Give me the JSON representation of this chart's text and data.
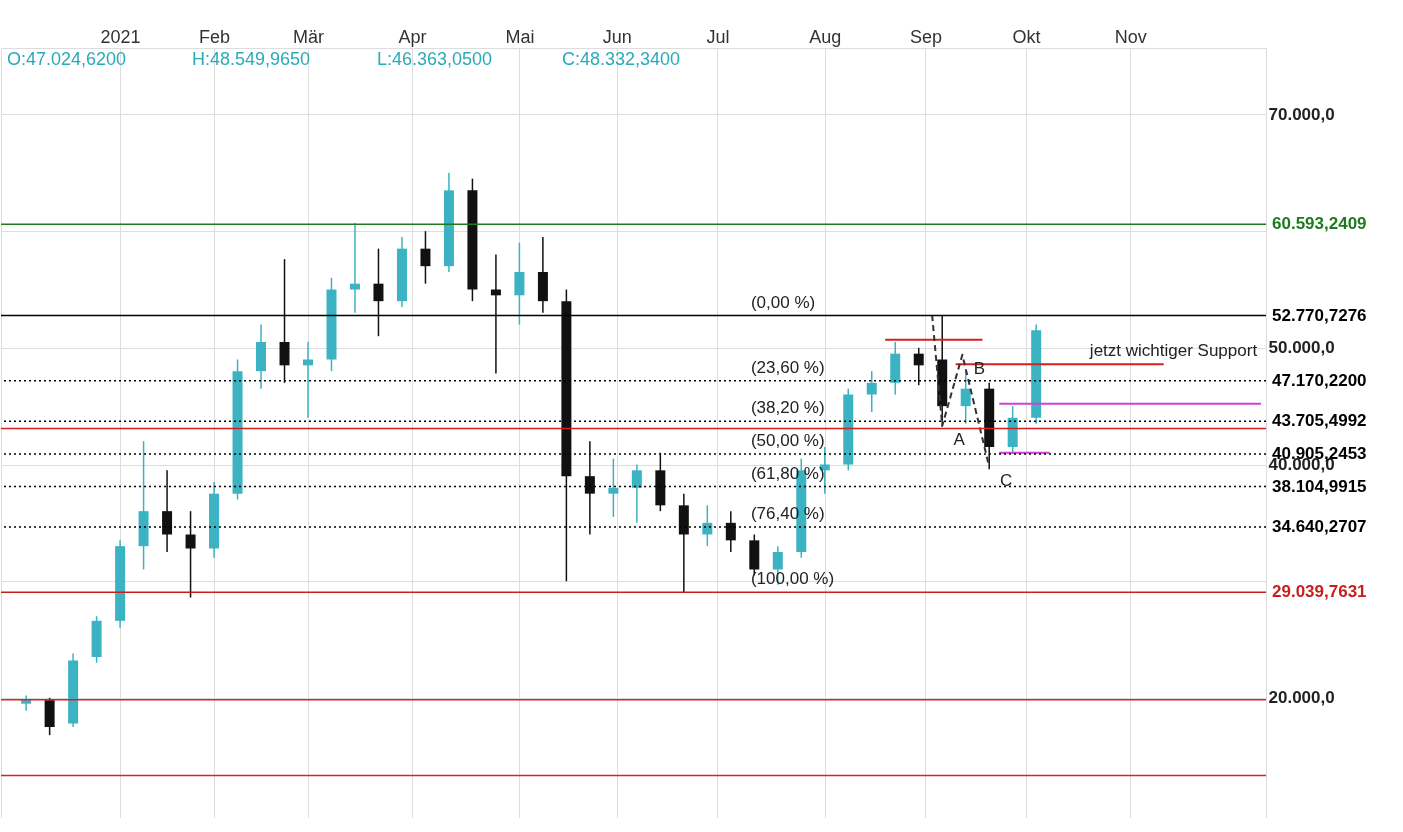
{
  "chart_data": {
    "type": "candlestick",
    "x": [
      "2020-12-07",
      "2020-12-14",
      "2020-12-21",
      "2020-12-28",
      "2021-01-04",
      "2021-01-11",
      "2021-01-18",
      "2021-01-25",
      "2021-02-01",
      "2021-02-08",
      "2021-02-15",
      "2021-02-22",
      "2021-03-01",
      "2021-03-08",
      "2021-03-15",
      "2021-03-22",
      "2021-03-29",
      "2021-04-05",
      "2021-04-12",
      "2021-04-19",
      "2021-04-26",
      "2021-05-03",
      "2021-05-10",
      "2021-05-17",
      "2021-05-24",
      "2021-05-31",
      "2021-06-07",
      "2021-06-14",
      "2021-06-21",
      "2021-06-28",
      "2021-07-05",
      "2021-07-12",
      "2021-07-19",
      "2021-07-26",
      "2021-08-02",
      "2021-08-09",
      "2021-08-16",
      "2021-08-23",
      "2021-08-30",
      "2021-09-06",
      "2021-09-13",
      "2021-09-20",
      "2021-09-27",
      "2021-10-04"
    ],
    "ohlc": [
      [
        19500,
        20200,
        18900,
        19800
      ],
      [
        19800,
        20000,
        16800,
        17500
      ],
      [
        17800,
        23800,
        17500,
        23200
      ],
      [
        23500,
        27000,
        23000,
        26600
      ],
      [
        26600,
        33500,
        26000,
        33000
      ],
      [
        33000,
        42000,
        31000,
        36000
      ],
      [
        36000,
        39500,
        32500,
        34000
      ],
      [
        34000,
        36000,
        28600,
        32800
      ],
      [
        32800,
        38500,
        32000,
        37500
      ],
      [
        37500,
        49000,
        37000,
        48000
      ],
      [
        48000,
        52000,
        46500,
        50500
      ],
      [
        50500,
        57600,
        47000,
        48500
      ],
      [
        48500,
        50500,
        44000,
        49000
      ],
      [
        49000,
        56000,
        48000,
        55000
      ],
      [
        55000,
        60700,
        53000,
        55500
      ],
      [
        55500,
        58500,
        51000,
        54000
      ],
      [
        54000,
        59500,
        53500,
        58500
      ],
      [
        58500,
        60000,
        55500,
        57000
      ],
      [
        57000,
        65000,
        56500,
        63500
      ],
      [
        63500,
        64500,
        54000,
        55000
      ],
      [
        55000,
        58000,
        47800,
        54500
      ],
      [
        54500,
        59000,
        52000,
        56500
      ],
      [
        56500,
        59500,
        53000,
        54000
      ],
      [
        54000,
        55000,
        30000,
        39000
      ],
      [
        39000,
        42000,
        34000,
        37500
      ],
      [
        37500,
        40500,
        35500,
        38000
      ],
      [
        38000,
        40000,
        35000,
        39500
      ],
      [
        39500,
        41000,
        36000,
        36500
      ],
      [
        36500,
        37500,
        29000,
        34000
      ],
      [
        34000,
        36500,
        33000,
        35000
      ],
      [
        35000,
        36000,
        32500,
        33500
      ],
      [
        33500,
        34000,
        30500,
        31000
      ],
      [
        31000,
        33000,
        29700,
        32500
      ],
      [
        32500,
        40500,
        32000,
        39500
      ],
      [
        39500,
        41500,
        37500,
        40000
      ],
      [
        40000,
        46500,
        39500,
        46000
      ],
      [
        46000,
        48000,
        44500,
        47000
      ],
      [
        47000,
        50500,
        46000,
        49500
      ],
      [
        49500,
        50000,
        46800,
        48500
      ],
      [
        49000,
        52770,
        43300,
        45000
      ],
      [
        45000,
        48000,
        43500,
        46500
      ],
      [
        46500,
        47000,
        39600,
        41500
      ],
      [
        41500,
        45000,
        40900,
        44000
      ],
      [
        44000,
        52000,
        43500,
        51500
      ]
    ],
    "colors": [
      "#3bb3c3",
      "#111111",
      "#3bb3c3",
      "#3bb3c3",
      "#3bb3c3",
      "#3bb3c3",
      "#111111",
      "#111111",
      "#3bb3c3",
      "#3bb3c3",
      "#3bb3c3",
      "#111111",
      "#3bb3c3",
      "#3bb3c3",
      "#3bb3c3",
      "#111111",
      "#3bb3c3",
      "#111111",
      "#3bb3c3",
      "#111111",
      "#111111",
      "#3bb3c3",
      "#111111",
      "#111111",
      "#111111",
      "#3bb3c3",
      "#3bb3c3",
      "#111111",
      "#111111",
      "#3bb3c3",
      "#111111",
      "#111111",
      "#3bb3c3",
      "#3bb3c3",
      "#3bb3c3",
      "#3bb3c3",
      "#3bb3c3",
      "#3bb3c3",
      "#111111",
      "#111111",
      "#3bb3c3",
      "#111111",
      "#3bb3c3",
      "#3bb3c3"
    ],
    "series": [
      {
        "type": "line",
        "color": "#d42020",
        "x": [
          "2021-08-20",
          "2021-09-18"
        ],
        "values": [
          50700,
          50700
        ]
      },
      {
        "type": "line",
        "color": "#d42020",
        "x": [
          "2021-09-10",
          "2021-11-11"
        ],
        "values": [
          48600,
          48600
        ]
      },
      {
        "type": "line",
        "color": "#d040d0",
        "x": [
          "2021-09-23",
          "2021-10-08"
        ],
        "values": [
          41000,
          41000
        ]
      },
      {
        "type": "line",
        "color": "#d040d0",
        "x": [
          "2021-09-23",
          "2021-12-10"
        ],
        "values": [
          45200,
          45200
        ]
      },
      {
        "type": "line",
        "color": "#333333",
        "line_style": "dashed",
        "x": [
          "2021-09-03",
          "2021-09-06",
          "2021-09-12",
          "2021-09-20"
        ],
        "values": [
          52800,
          43300,
          49400,
          39800
        ]
      }
    ],
    "xlim": [
      "2020-12-01",
      "2021-12-10"
    ],
    "xticks": [
      {
        "value": "2021-01-04",
        "label": "2021"
      },
      {
        "value": "2021-02-01",
        "label": "Feb"
      },
      {
        "value": "2021-03-01",
        "label": "Mär"
      },
      {
        "value": "2021-04-01",
        "label": "Apr"
      },
      {
        "value": "2021-05-03",
        "label": "Mai"
      },
      {
        "value": "2021-06-01",
        "label": "Jun"
      },
      {
        "value": "2021-07-01",
        "label": "Jul"
      },
      {
        "value": "2021-08-02",
        "label": "Aug"
      },
      {
        "value": "2021-09-01",
        "label": "Sep"
      },
      {
        "value": "2021-10-01",
        "label": "Okt"
      },
      {
        "value": "2021-11-01",
        "label": "Nov"
      }
    ],
    "ylim": [
      9700,
      75700
    ],
    "yticks": [
      {
        "value": 20000,
        "label": "20.000,0"
      },
      {
        "value": 30000,
        "label": null
      },
      {
        "value": 40000,
        "label": "40.000,0"
      },
      {
        "value": 50000,
        "label": "50.000,0"
      },
      {
        "value": 60000,
        "label": null
      },
      {
        "value": 70000,
        "label": "70.000,0"
      }
    ],
    "grid": true,
    "ref_lines": [
      {
        "axis": "y",
        "value": 60593.2409,
        "label": "60.593,2409",
        "color": "#1f7a1f"
      },
      {
        "axis": "y",
        "value": 52770.7276,
        "label": "52.770,7276",
        "color": "#000000"
      },
      {
        "axis": "y",
        "value": 47170.22,
        "label": "47.170,2200",
        "color": "#000000",
        "line_style": "dotted"
      },
      {
        "axis": "y",
        "value": 43705.4992,
        "label": "43.705,4992",
        "color": "#000000",
        "line_style": "dotted"
      },
      {
        "axis": "y",
        "value": 43090,
        "label": null,
        "color": "#d42020"
      },
      {
        "axis": "y",
        "value": 40905.2453,
        "label": "40.905,2453",
        "color": "#000000",
        "line_style": "dotted"
      },
      {
        "axis": "y",
        "value": 38104.9915,
        "label": "38.104,9915",
        "color": "#000000",
        "line_style": "dotted"
      },
      {
        "axis": "y",
        "value": 34640.2707,
        "label": "34.640,2707",
        "color": "#000000",
        "line_style": "dotted"
      },
      {
        "axis": "y",
        "value": 29039.7631,
        "label": "29.039,7631",
        "color": "#c81e1e"
      },
      {
        "axis": "y",
        "value": 19830,
        "label": null,
        "color": "#e02020"
      },
      {
        "axis": "y",
        "value": 13350,
        "label": null,
        "color": "#e02020"
      }
    ],
    "annotations": [
      "O:47.024,6200",
      "H:48.549,9650",
      "L:46.363,0500",
      "C:48.332,3400",
      {
        "text": "(0,00 %)",
        "x": "2021-07-11",
        "y": 52770.7276
      },
      {
        "text": "(23,60 %)",
        "x": "2021-07-11",
        "y": 47170.22
      },
      {
        "text": "(38,20 %)",
        "x": "2021-07-11",
        "y": 43705.4992
      },
      {
        "text": "(50,00 %)",
        "x": "2021-07-11",
        "y": 40905.2453
      },
      {
        "text": "(61,80 %)",
        "x": "2021-07-11",
        "y": 38104.9915
      },
      {
        "text": "(76,40 %)",
        "x": "2021-07-11",
        "y": 34640.2707
      },
      {
        "text": "(100,00 %)",
        "x": "2021-07-11",
        "y": 29039.7631
      },
      {
        "text": "A",
        "x": "2021-09-06",
        "y": 43300
      },
      {
        "text": "B",
        "x": "2021-09-12",
        "y": 49400
      },
      {
        "text": "C",
        "x": "2021-09-20",
        "y": 39800
      },
      {
        "text": "jetzt wichtiger Support",
        "x": "2021-10-20",
        "y": 48600
      }
    ]
  }
}
